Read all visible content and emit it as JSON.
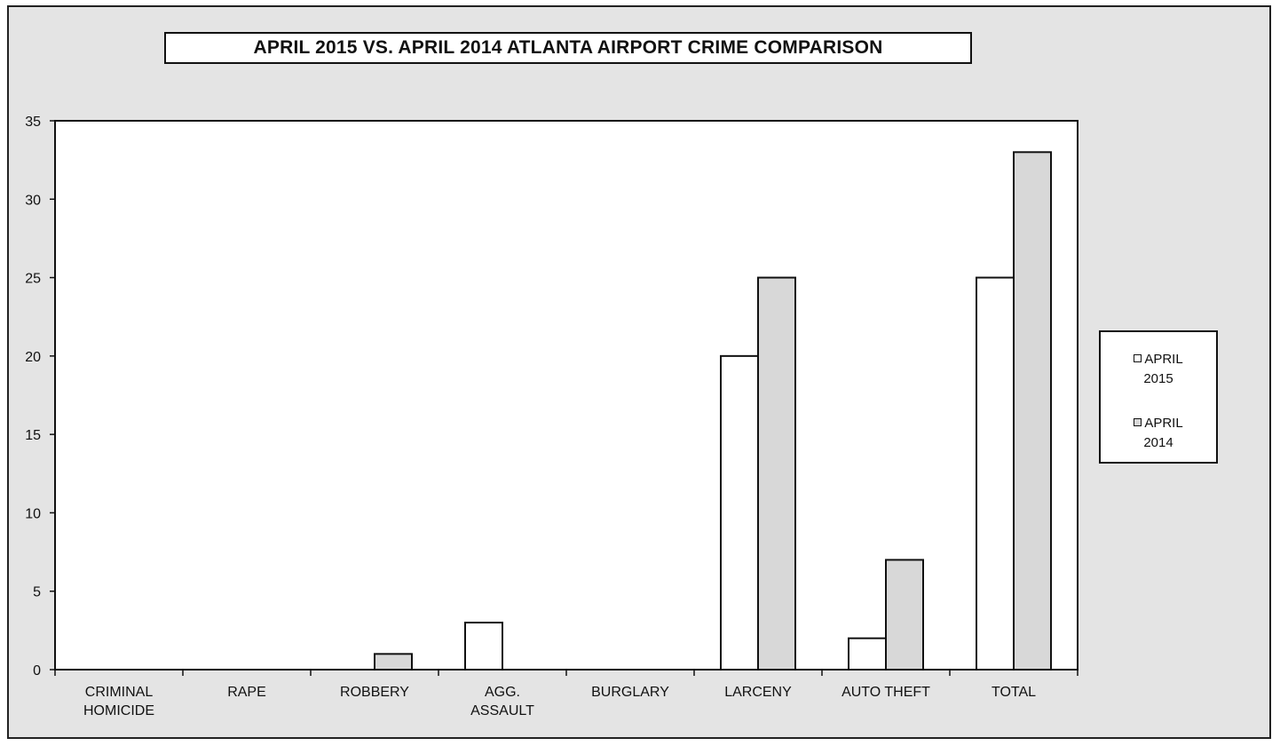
{
  "chart_data": {
    "type": "bar",
    "title": "APRIL 2015 VS. APRIL 2014 ATLANTA AIRPORT CRIME COMPARISON",
    "categories": [
      [
        "CRIMINAL",
        "HOMICIDE"
      ],
      [
        "RAPE"
      ],
      [
        "ROBBERY"
      ],
      [
        "AGG.",
        "ASSAULT"
      ],
      [
        "BURGLARY"
      ],
      [
        "LARCENY"
      ],
      [
        "AUTO THEFT"
      ],
      [
        "TOTAL"
      ]
    ],
    "series": [
      {
        "name": "APRIL 2015",
        "name_lines": [
          "APRIL",
          "2015"
        ],
        "color": "#ffffff",
        "values": [
          0,
          0,
          0,
          3,
          0,
          20,
          2,
          25
        ]
      },
      {
        "name": "APRIL 2014",
        "name_lines": [
          "APRIL",
          "2014"
        ],
        "color": "#d8d8d8",
        "values": [
          0,
          0,
          1,
          0,
          0,
          25,
          7,
          33
        ]
      }
    ],
    "ylim": [
      0,
      35
    ],
    "yticks": [
      0,
      5,
      10,
      15,
      20,
      25,
      30,
      35
    ],
    "xlabel": "",
    "ylabel": "",
    "grid": false,
    "legend_position": "right"
  }
}
